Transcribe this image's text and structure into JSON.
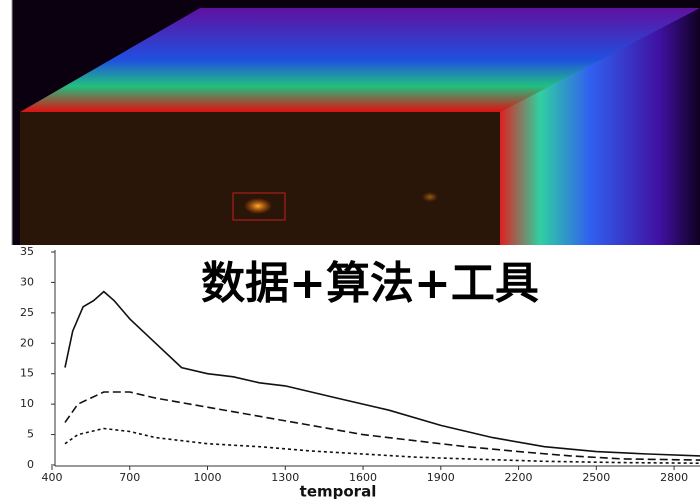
{
  "annotation": "数据+算法+工具",
  "chart_data": {
    "type": "line",
    "x_label": "temporal",
    "xlim": [
      400,
      2900
    ],
    "ylim": [
      0,
      35
    ],
    "xticks": [
      400,
      700,
      1000,
      1300,
      1600,
      1900,
      2200,
      2500,
      2800
    ],
    "yticks": [
      0,
      5,
      10,
      15,
      20,
      25,
      30,
      35
    ],
    "series": [
      {
        "color": "#111111",
        "style": "solid",
        "x": [
          450,
          480,
          520,
          560,
          600,
          640,
          700,
          800,
          900,
          1000,
          1100,
          1200,
          1300,
          1500,
          1700,
          1900,
          2100,
          2300,
          2500,
          2700,
          2900
        ],
        "values": [
          16,
          22,
          26,
          27,
          28.5,
          27,
          24,
          20,
          16,
          15,
          14.5,
          13.5,
          13,
          11,
          9,
          6.5,
          4.5,
          3,
          2.2,
          1.8,
          1.5
        ]
      },
      {
        "color": "#111111",
        "style": "dashed",
        "x": [
          450,
          500,
          600,
          700,
          800,
          1000,
          1200,
          1400,
          1600,
          1800,
          2000,
          2200,
          2400,
          2600,
          2900
        ],
        "values": [
          7,
          10,
          12,
          12,
          11,
          9.5,
          8,
          6.5,
          5,
          4,
          3,
          2.2,
          1.5,
          1,
          0.8
        ]
      },
      {
        "color": "#111111",
        "style": "dotted",
        "x": [
          450,
          500,
          600,
          700,
          800,
          1000,
          1200,
          1400,
          1600,
          1800,
          2000,
          2300,
          2600,
          2900
        ],
        "values": [
          3.5,
          5,
          6,
          5.5,
          4.5,
          3.5,
          3,
          2.3,
          1.8,
          1.3,
          1,
          0.6,
          0.4,
          0.3
        ]
      }
    ]
  }
}
